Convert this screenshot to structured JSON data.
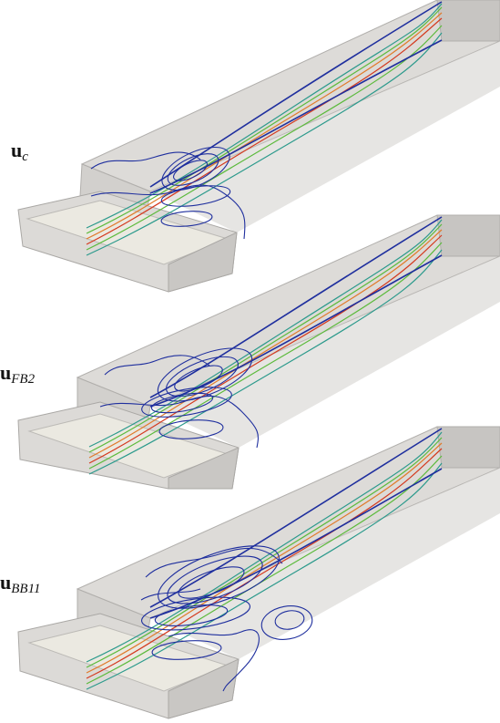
{
  "panels": [
    {
      "id": "uc",
      "symbol": "u",
      "subscript": "c"
    },
    {
      "id": "ufb2",
      "symbol": "u",
      "subscript": "FB2"
    },
    {
      "id": "ubb11",
      "symbol": "u",
      "subscript": "BB11"
    }
  ],
  "colors": {
    "box_face": "#d9d7d4",
    "box_side": "#c9c7c4",
    "box_edge": "#a7a5a2",
    "floor": "#e8e6dd",
    "streamline_inner": "#d43a1f",
    "streamline_mid": "#5cba3c",
    "streamline_outer": "#1f2f9e"
  }
}
